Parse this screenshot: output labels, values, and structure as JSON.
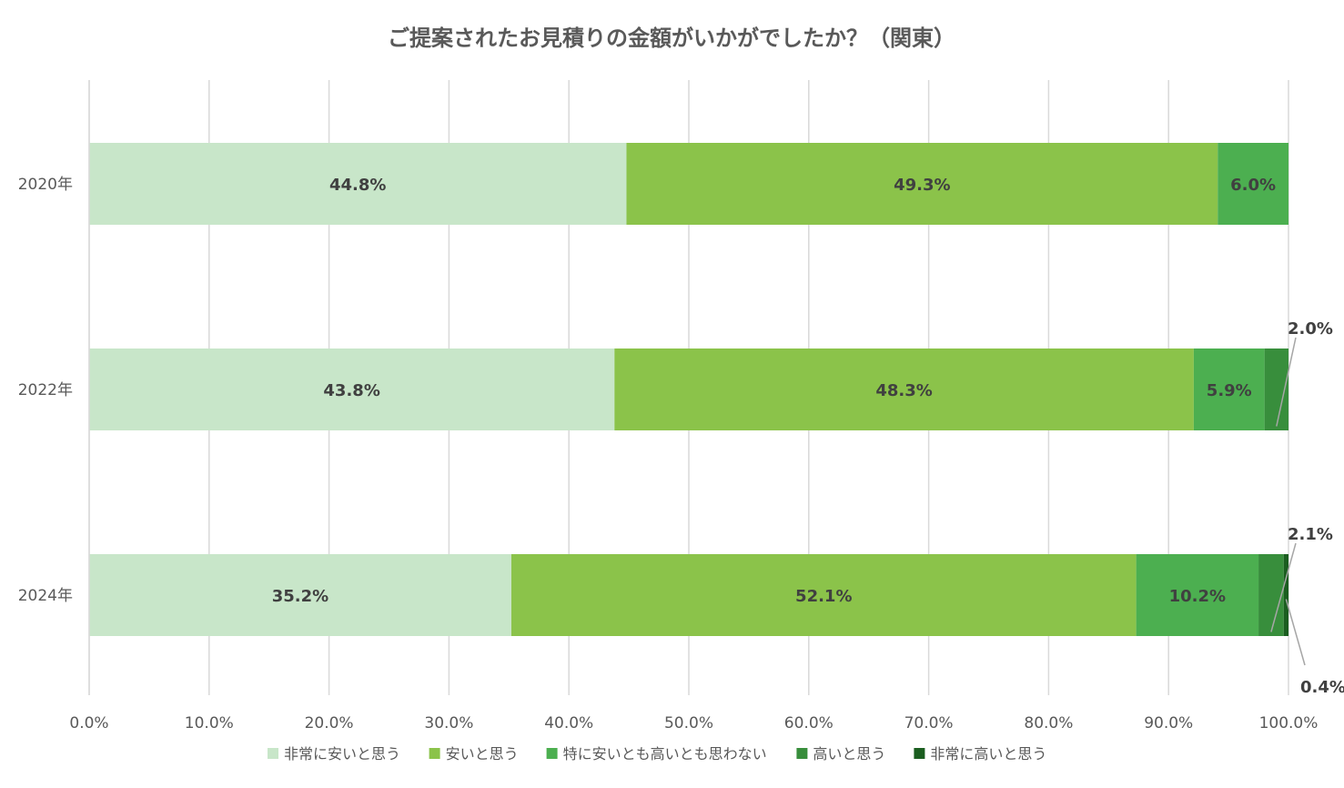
{
  "chart_data": {
    "type": "bar",
    "orientation": "horizontal",
    "stacked": true,
    "title": "ご提案されたお見積りの金額がいかがでしたか？（関東）",
    "categories": [
      "2020年",
      "2022年",
      "2024年"
    ],
    "series": [
      {
        "name": "非常に安いと思う",
        "color": "#c8e6c9",
        "values": [
          44.8,
          43.8,
          35.2
        ],
        "labels": [
          "44.8%",
          "43.8%",
          "35.2%"
        ]
      },
      {
        "name": "安いと思う",
        "color": "#8bc34a",
        "values": [
          49.3,
          48.3,
          52.1
        ],
        "labels": [
          "49.3%",
          "48.3%",
          "52.1%"
        ]
      },
      {
        "name": "特に安いとも高いとも思わない",
        "color": "#4caf50",
        "values": [
          6.0,
          5.9,
          10.2
        ],
        "labels": [
          "6.0%",
          "5.9%",
          "10.2%"
        ]
      },
      {
        "name": "高いと思う",
        "color": "#388e3c",
        "values": [
          0,
          2.0,
          2.1
        ],
        "labels": [
          "",
          "2.0%",
          "2.1%"
        ]
      },
      {
        "name": "非常に高いと思う",
        "color": "#1b5e20",
        "values": [
          0,
          0,
          0.4
        ],
        "labels": [
          "",
          "",
          "0.4%"
        ]
      }
    ],
    "xlim": [
      0,
      100
    ],
    "xticks": [
      "0.0%",
      "10.0%",
      "20.0%",
      "30.0%",
      "40.0%",
      "50.0%",
      "60.0%",
      "70.0%",
      "80.0%",
      "90.0%",
      "100.0%"
    ],
    "grid": true,
    "legend_position": "bottom"
  }
}
